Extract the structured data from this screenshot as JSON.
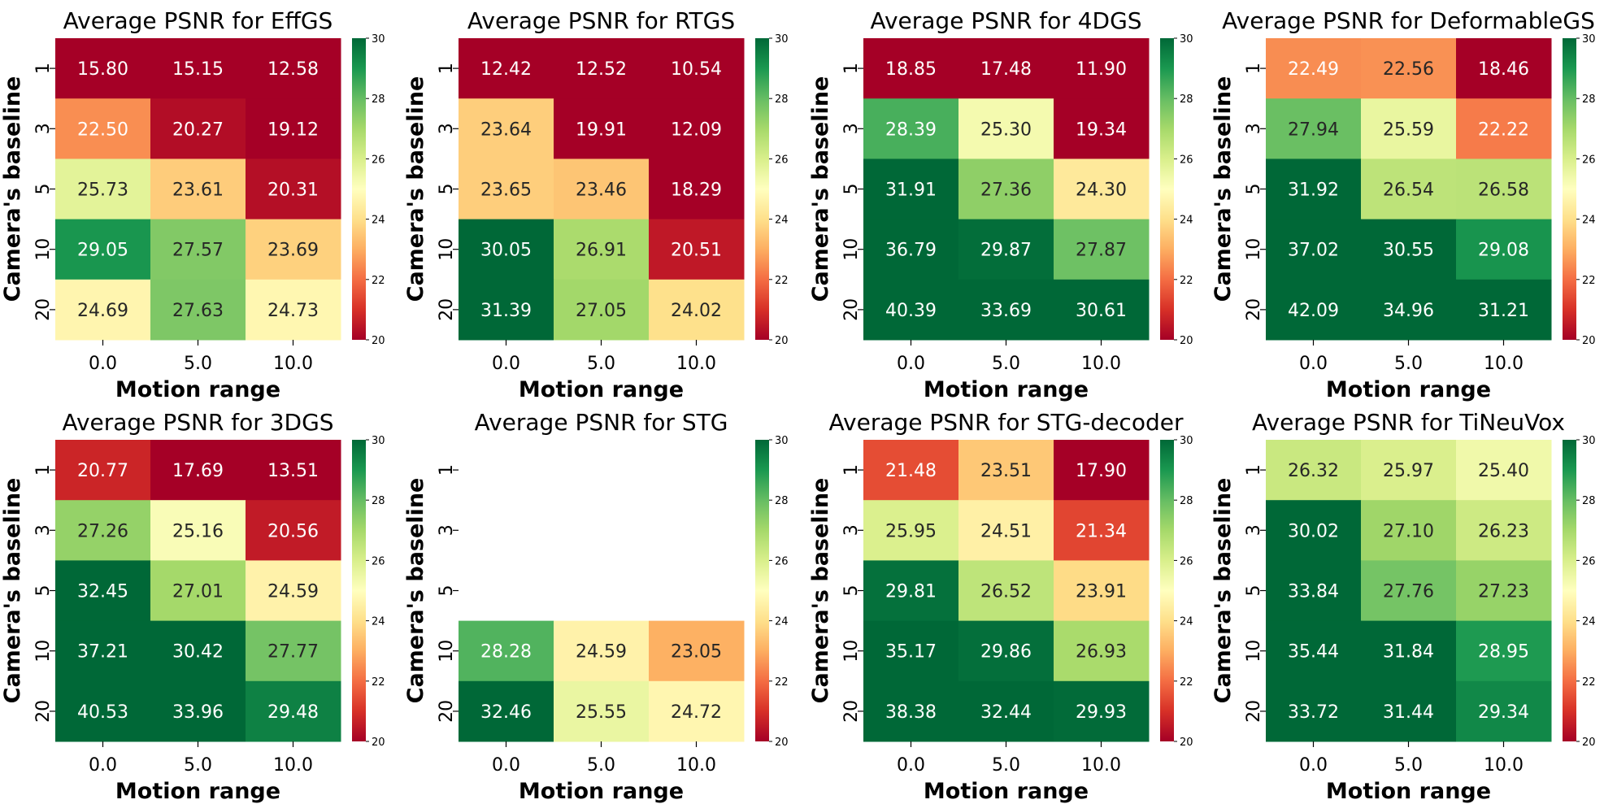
{
  "colormap": "RdYlGn",
  "colors": {
    "low": "#a50026",
    "mid": "#ffffbf",
    "high": "#006837"
  },
  "chart_data": [
    {
      "type": "heatmap",
      "title": "Average PSNR for EffGS",
      "xlabel": "Motion range",
      "ylabel": "Camera's baseline",
      "x": [
        "0.0",
        "5.0",
        "10.0"
      ],
      "y": [
        "1",
        "3",
        "5",
        "10",
        "20"
      ],
      "vlim": [
        20,
        30
      ],
      "colorbar_ticks": [
        "20",
        "22",
        "24",
        "26",
        "28",
        "30"
      ],
      "values": [
        [
          15.8,
          15.15,
          12.58
        ],
        [
          22.5,
          20.27,
          19.12
        ],
        [
          25.73,
          23.61,
          20.31
        ],
        [
          29.05,
          27.57,
          23.69
        ],
        [
          24.69,
          27.63,
          24.73
        ]
      ]
    },
    {
      "type": "heatmap",
      "title": "Average PSNR for RTGS",
      "xlabel": "Motion range",
      "ylabel": "Camera's baseline",
      "x": [
        "0.0",
        "5.0",
        "10.0"
      ],
      "y": [
        "1",
        "3",
        "5",
        "10",
        "20"
      ],
      "vlim": [
        20,
        30
      ],
      "colorbar_ticks": [
        "20",
        "22",
        "24",
        "26",
        "28",
        "30"
      ],
      "values": [
        [
          12.42,
          12.52,
          10.54
        ],
        [
          23.64,
          19.91,
          12.09
        ],
        [
          23.65,
          23.46,
          18.29
        ],
        [
          30.05,
          26.91,
          20.51
        ],
        [
          31.39,
          27.05,
          24.02
        ]
      ]
    },
    {
      "type": "heatmap",
      "title": "Average PSNR for 4DGS",
      "xlabel": "Motion range",
      "ylabel": "Camera's baseline",
      "x": [
        "0.0",
        "5.0",
        "10.0"
      ],
      "y": [
        "1",
        "3",
        "5",
        "10",
        "20"
      ],
      "vlim": [
        20,
        30
      ],
      "colorbar_ticks": [
        "20",
        "22",
        "24",
        "26",
        "28",
        "30"
      ],
      "values": [
        [
          18.85,
          17.48,
          11.9
        ],
        [
          28.39,
          25.3,
          19.34
        ],
        [
          31.91,
          27.36,
          24.3
        ],
        [
          36.79,
          29.87,
          27.87
        ],
        [
          40.39,
          33.69,
          30.61
        ]
      ]
    },
    {
      "type": "heatmap",
      "title": "Average PSNR for DeformableGS",
      "xlabel": "Motion range",
      "ylabel": "Camera's baseline",
      "x": [
        "0.0",
        "5.0",
        "10.0"
      ],
      "y": [
        "1",
        "3",
        "5",
        "10",
        "20"
      ],
      "vlim": [
        20,
        30
      ],
      "colorbar_ticks": [
        "20",
        "22",
        "24",
        "26",
        "28",
        "30"
      ],
      "values": [
        [
          22.49,
          22.56,
          18.46
        ],
        [
          27.94,
          25.59,
          22.22
        ],
        [
          31.92,
          26.54,
          26.58
        ],
        [
          37.02,
          30.55,
          29.08
        ],
        [
          42.09,
          34.96,
          31.21
        ]
      ]
    },
    {
      "type": "heatmap",
      "title": "Average PSNR for 3DGS",
      "xlabel": "Motion range",
      "ylabel": "Camera's baseline",
      "x": [
        "0.0",
        "5.0",
        "10.0"
      ],
      "y": [
        "1",
        "3",
        "5",
        "10",
        "20"
      ],
      "vlim": [
        20,
        30
      ],
      "colorbar_ticks": [
        "20",
        "22",
        "24",
        "26",
        "28",
        "30"
      ],
      "values": [
        [
          20.77,
          17.69,
          13.51
        ],
        [
          27.26,
          25.16,
          20.56
        ],
        [
          32.45,
          27.01,
          24.59
        ],
        [
          37.21,
          30.42,
          27.77
        ],
        [
          40.53,
          33.96,
          29.48
        ]
      ]
    },
    {
      "type": "heatmap",
      "title": "Average PSNR for STG",
      "xlabel": "Motion range",
      "ylabel": "Camera's baseline",
      "x": [
        "0.0",
        "5.0",
        "10.0"
      ],
      "y": [
        "1",
        "3",
        "5",
        "10",
        "20"
      ],
      "vlim": [
        20,
        30
      ],
      "colorbar_ticks": [
        "20",
        "22",
        "24",
        "26",
        "28",
        "30"
      ],
      "values": [
        [
          null,
          null,
          null
        ],
        [
          null,
          null,
          null
        ],
        [
          null,
          null,
          null
        ],
        [
          28.28,
          24.59,
          23.05
        ],
        [
          32.46,
          25.55,
          24.72
        ]
      ]
    },
    {
      "type": "heatmap",
      "title": "Average PSNR for STG-decoder",
      "xlabel": "Motion range",
      "ylabel": "Camera's baseline",
      "x": [
        "0.0",
        "5.0",
        "10.0"
      ],
      "y": [
        "1",
        "3",
        "5",
        "10",
        "20"
      ],
      "vlim": [
        20,
        30
      ],
      "colorbar_ticks": [
        "20",
        "22",
        "24",
        "26",
        "28",
        "30"
      ],
      "values": [
        [
          21.48,
          23.51,
          17.9
        ],
        [
          25.95,
          24.51,
          21.34
        ],
        [
          29.81,
          26.52,
          23.91
        ],
        [
          35.17,
          29.86,
          26.93
        ],
        [
          38.38,
          32.44,
          29.93
        ]
      ]
    },
    {
      "type": "heatmap",
      "title": "Average PSNR for TiNeuVox",
      "xlabel": "Motion range",
      "ylabel": "Camera's baseline",
      "x": [
        "0.0",
        "5.0",
        "10.0"
      ],
      "y": [
        "1",
        "3",
        "5",
        "10",
        "20"
      ],
      "vlim": [
        20,
        30
      ],
      "colorbar_ticks": [
        "20",
        "22",
        "24",
        "26",
        "28",
        "30"
      ],
      "values": [
        [
          26.32,
          25.97,
          25.4
        ],
        [
          30.02,
          27.1,
          26.23
        ],
        [
          33.84,
          27.76,
          27.23
        ],
        [
          35.44,
          31.84,
          28.95
        ],
        [
          33.72,
          31.44,
          29.34
        ]
      ]
    }
  ]
}
